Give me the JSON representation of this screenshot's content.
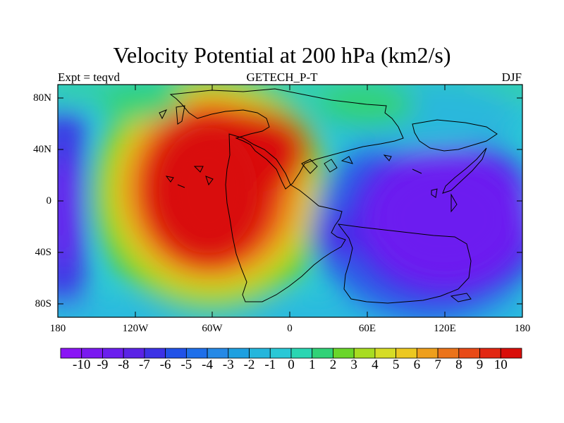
{
  "title": "Velocity Potential at 200 hPa (km2/s)",
  "left_string": "Expt = teqvd",
  "center_string": "GETECH_P-T",
  "right_string": "DJF",
  "lat_ticks": [
    "80N",
    "40N",
    "0",
    "40S",
    "80S"
  ],
  "lon_ticks": [
    "180",
    "120W",
    "60W",
    "0",
    "60E",
    "120E",
    "180"
  ],
  "colorbar": {
    "labels": [
      "-10",
      "-9",
      "-8",
      "-7",
      "-6",
      "-5",
      "-4",
      "-3",
      "-2",
      "-1",
      "0",
      "1",
      "2",
      "3",
      "4",
      "5",
      "6",
      "7",
      "8",
      "9",
      "10"
    ],
    "colors": [
      "#8a14f5",
      "#7a19f0",
      "#6b1eee",
      "#5a23e6",
      "#3c32e6",
      "#2152e8",
      "#1e6fea",
      "#2589e6",
      "#1ea0e0",
      "#24b6dc",
      "#2ac8d6",
      "#2ad6b2",
      "#30d277",
      "#6ad62a",
      "#a8dc22",
      "#d6dc26",
      "#ecc821",
      "#ee9f1c",
      "#eb7319",
      "#e84a16",
      "#e22611",
      "#d90e0a"
    ]
  },
  "colors": {
    "high": "#d90e0a",
    "low": "#6e1ef0",
    "background": "#2ac8d6"
  }
}
